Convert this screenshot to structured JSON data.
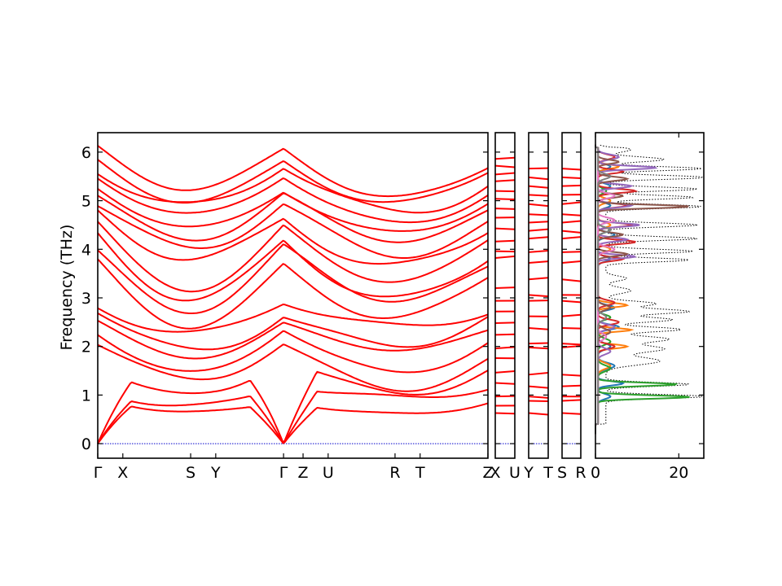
{
  "chart_data": [
    {
      "type": "line",
      "title": "",
      "xlabel": "",
      "ylabel": "Frequency (THz)",
      "ylim": [
        -0.3,
        6.4
      ],
      "yticks": [
        0,
        1,
        2,
        3,
        4,
        5,
        6
      ],
      "grid": false,
      "line_color": "#ff0000",
      "zero_line_color": "#0000cc",
      "segments": [
        {
          "name": "",
          "path": [
            "Γ",
            "X",
            "S",
            "Y",
            "Γ",
            "Z",
            "U",
            "R",
            "T",
            "Z"
          ],
          "tick_positions": [
            0,
            0.135,
            0.5,
            0.635,
            1.0,
            1.105,
            1.24,
            1.6,
            1.735,
            2.1
          ],
          "xlim": [
            0,
            2.1
          ]
        },
        {
          "name": "",
          "path": [
            "X",
            "U"
          ],
          "tick_positions": [
            0,
            0.105
          ],
          "xlim": [
            0,
            0.105
          ]
        },
        {
          "name": "",
          "path": [
            "Y",
            "T"
          ],
          "tick_positions": [
            0,
            0.105
          ],
          "xlim": [
            0,
            0.105
          ]
        },
        {
          "name": "",
          "path": [
            "S",
            "R"
          ],
          "tick_positions": [
            0,
            0.105
          ],
          "xlim": [
            0,
            0.105
          ]
        }
      ],
      "gamma_flat_levels": [
        0.97,
        1.22,
        1.73,
        2.02,
        2.34,
        2.48,
        2.73,
        2.87,
        3.72,
        3.94,
        4.22,
        4.5,
        4.71,
        4.86,
        5.06,
        5.24,
        5.48,
        5.66,
        5.84,
        6.04
      ],
      "zb_levels": [
        0.63,
        0.78,
        0.97,
        1.25,
        1.46,
        1.76,
        1.96,
        2.24,
        2.48,
        2.72,
        2.94,
        3.2,
        3.82,
        3.96,
        4.16,
        4.43,
        4.65,
        4.84,
        5.04,
        5.2,
        5.4,
        5.54,
        5.72,
        5.86
      ],
      "flat_levels_right": [
        0.63,
        0.88,
        0.97,
        1.18,
        1.42,
        1.98,
        2.06,
        2.38,
        2.62,
        2.94,
        3.06,
        3.38,
        3.72,
        3.94,
        4.22,
        4.38,
        4.55,
        4.72,
        4.93,
        5.12,
        5.3,
        5.48,
        5.66
      ]
    },
    {
      "type": "line",
      "title": "",
      "xlabel": "",
      "ylabel": "",
      "xlim": [
        0,
        26
      ],
      "xticks": [
        0,
        20
      ],
      "ylim": [
        -0.3,
        6.4
      ],
      "series": [
        {
          "name": "",
          "style": "dotted",
          "color": "#000000",
          "total": true,
          "peaks": [
            [
              0.97,
              24,
              0.04
            ],
            [
              1.22,
              20,
              0.04
            ],
            [
              1.7,
              13,
              0.08
            ],
            [
              1.95,
              14,
              0.07
            ],
            [
              2.15,
              15,
              0.06
            ],
            [
              2.35,
              18,
              0.05
            ],
            [
              2.55,
              16,
              0.05
            ],
            [
              2.72,
              20,
              0.05
            ],
            [
              2.88,
              12,
              0.05
            ],
            [
              3.15,
              6,
              0.06
            ],
            [
              3.4,
              5,
              0.05
            ],
            [
              3.78,
              20,
              0.04
            ],
            [
              3.96,
              21,
              0.04
            ],
            [
              4.22,
              22,
              0.04
            ],
            [
              4.5,
              22,
              0.04
            ],
            [
              4.88,
              23,
              0.04
            ],
            [
              5.07,
              21,
              0.04
            ],
            [
              5.24,
              22,
              0.04
            ],
            [
              5.48,
              24,
              0.04
            ],
            [
              5.66,
              23,
              0.04
            ],
            [
              5.85,
              14,
              0.05
            ],
            [
              6.05,
              6,
              0.05
            ]
          ]
        },
        {
          "name": "",
          "color": "#1f77b4",
          "peaks": [
            [
              0.97,
              3,
              0.05
            ],
            [
              1.24,
              6,
              0.04
            ],
            [
              1.6,
              4,
              0.06
            ],
            [
              2.0,
              3,
              0.06
            ],
            [
              2.4,
              5,
              0.05
            ],
            [
              2.8,
              4,
              0.05
            ],
            [
              3.8,
              3,
              0.05
            ],
            [
              4.3,
              4,
              0.05
            ],
            [
              4.9,
              3,
              0.05
            ],
            [
              5.3,
              3,
              0.05
            ],
            [
              5.7,
              3,
              0.05
            ]
          ]
        },
        {
          "name": "",
          "color": "#ff7f0e",
          "peaks": [
            [
              1.6,
              3,
              0.06
            ],
            [
              2.0,
              7,
              0.04
            ],
            [
              2.34,
              8,
              0.035
            ],
            [
              2.85,
              7,
              0.04
            ],
            [
              4.0,
              3,
              0.05
            ],
            [
              4.5,
              3,
              0.05
            ],
            [
              5.0,
              3,
              0.05
            ],
            [
              5.7,
              5,
              0.04
            ]
          ]
        },
        {
          "name": "",
          "color": "#2ca02c",
          "peaks": [
            [
              0.96,
              22,
              0.035
            ],
            [
              1.22,
              19,
              0.035
            ],
            [
              1.55,
              3,
              0.06
            ],
            [
              2.1,
              3,
              0.06
            ],
            [
              2.6,
              3,
              0.05
            ],
            [
              4.4,
              3,
              0.05
            ],
            [
              5.2,
              2,
              0.05
            ]
          ]
        },
        {
          "name": "",
          "color": "#d62728",
          "peaks": [
            [
              2.0,
              4,
              0.05
            ],
            [
              2.5,
              5,
              0.05
            ],
            [
              2.9,
              4,
              0.05
            ],
            [
              3.8,
              6,
              0.04
            ],
            [
              4.15,
              9,
              0.04
            ],
            [
              4.5,
              8,
              0.04
            ],
            [
              4.9,
              7,
              0.04
            ],
            [
              5.2,
              9,
              0.04
            ],
            [
              5.6,
              6,
              0.04
            ],
            [
              5.9,
              4,
              0.05
            ]
          ]
        },
        {
          "name": "",
          "color": "#9467bd",
          "peaks": [
            [
              1.9,
              3,
              0.06
            ],
            [
              2.4,
              4,
              0.05
            ],
            [
              3.85,
              9,
              0.035
            ],
            [
              4.2,
              7,
              0.04
            ],
            [
              4.5,
              10,
              0.035
            ],
            [
              4.9,
              8,
              0.04
            ],
            [
              5.3,
              8,
              0.04
            ],
            [
              5.68,
              14,
              0.035
            ],
            [
              5.9,
              5,
              0.05
            ]
          ]
        },
        {
          "name": "",
          "color": "#8c564b",
          "peaks": [
            [
              2.3,
              3,
              0.06
            ],
            [
              2.8,
              3,
              0.05
            ],
            [
              3.9,
              7,
              0.04
            ],
            [
              4.3,
              6,
              0.04
            ],
            [
              4.88,
              22,
              0.035
            ],
            [
              5.1,
              6,
              0.04
            ],
            [
              5.45,
              7,
              0.04
            ],
            [
              5.8,
              5,
              0.04
            ]
          ]
        },
        {
          "name": "",
          "color": "#e377c2",
          "peaks": [
            [
              2.2,
              2,
              0.06
            ],
            [
              4.0,
              4,
              0.05
            ],
            [
              4.6,
              4,
              0.05
            ],
            [
              5.1,
              4,
              0.05
            ]
          ]
        },
        {
          "name": "",
          "color": "#7f7f7f",
          "peaks": [
            [
              2.6,
              2,
              0.06
            ],
            [
              4.4,
              3,
              0.05
            ],
            [
              5.5,
              3,
              0.05
            ]
          ]
        }
      ]
    }
  ]
}
